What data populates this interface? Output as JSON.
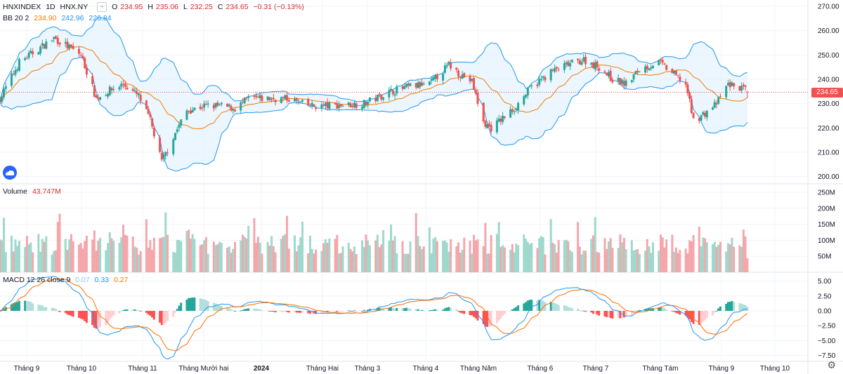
{
  "header": {
    "symbol": "HNXINDEX",
    "interval": "1D",
    "exchange": "HNX.NY",
    "minus_label": "−",
    "ohlc": {
      "open_label": "O",
      "open": "234.95",
      "high_label": "H",
      "high": "235.06",
      "low_label": "L",
      "low": "232.25",
      "close_label": "C",
      "close": "234.65",
      "change": "−0.31 (−0.13%)"
    }
  },
  "bb_legend": {
    "name": "BB 20 2",
    "basis": "234.90",
    "upper": "242.96",
    "lower": "226.84"
  },
  "volume_legend": {
    "name": "Volume",
    "value": "43.747M"
  },
  "macd_legend": {
    "name": "MACD 12 26 close 9",
    "hist": "0.07",
    "macd": "0.33",
    "signal": "0.27"
  },
  "last_price_tag": "234.65",
  "colors": {
    "up": "#26a69a",
    "down": "#ef5350",
    "vol_up": "#9fd8cc",
    "vol_down": "#f4a7ab",
    "bb_basis": "#f57c00",
    "bb_band": "#2196f3",
    "bb_fill": "#e3f2fd",
    "macd_line": "#2196f3",
    "signal_line": "#ff6d00"
  },
  "icons": {
    "logo": "tradingview-cloud-icon",
    "settings": "gear-icon"
  },
  "x_axis_labels": [
    "Tháng 9",
    "Tháng 10",
    "Tháng 11",
    "Tháng Mười hai",
    "2024",
    "Tháng Hai",
    "Tháng 3",
    "Tháng 4",
    "Tháng Năm",
    "Tháng 6",
    "Tháng 7",
    "Tháng Tám",
    "Tháng 9",
    "Tháng 10"
  ],
  "price_axis_labels": [
    "270.00",
    "260.00",
    "250.00",
    "240.00",
    "230.00",
    "220.00",
    "210.00",
    "200.00"
  ],
  "volume_axis_labels": [
    "250M",
    "200M",
    "150M",
    "100M",
    "50M"
  ],
  "macd_axis_labels": [
    "5.00",
    "2.50",
    "0.00",
    "−2.50",
    "−5.00",
    "−7.50"
  ],
  "chart_data": {
    "type": "candlestick",
    "title": "HNXINDEX · 1D · HNX.NY",
    "price_ylim": [
      197,
      272
    ],
    "volume_ylim": [
      0,
      250
    ],
    "volume_unit": "M",
    "macd_ylim": [
      -8.5,
      6.5
    ],
    "grid": true,
    "close_series": {
      "dates": [
        "2023-08-15",
        "2023-08-25",
        "2023-09-05",
        "2023-09-12",
        "2023-09-20",
        "2023-09-26",
        "2023-10-04",
        "2023-10-10",
        "2023-10-18",
        "2023-10-26",
        "2023-11-01",
        "2023-11-07",
        "2023-11-14",
        "2023-11-20",
        "2023-11-29",
        "2023-12-07",
        "2023-12-15",
        "2023-12-22",
        "2024-01-03",
        "2024-01-12",
        "2024-01-22",
        "2024-02-01",
        "2024-02-20",
        "2024-03-05",
        "2024-03-15",
        "2024-03-25",
        "2024-04-04",
        "2024-04-10",
        "2024-04-16",
        "2024-04-22",
        "2024-04-26",
        "2024-05-08",
        "2024-05-16",
        "2024-05-27",
        "2024-06-05",
        "2024-06-13",
        "2024-06-21",
        "2024-06-28",
        "2024-07-05",
        "2024-07-12",
        "2024-07-22",
        "2024-07-30",
        "2024-08-05",
        "2024-08-09",
        "2024-08-15",
        "2024-08-21",
        "2024-08-27",
        "2024-09-04",
        "2024-09-06"
      ],
      "close": [
        232,
        247,
        253,
        257,
        253,
        250,
        232,
        235,
        238,
        233,
        223,
        206,
        218,
        227,
        229,
        229,
        228,
        232,
        232,
        232,
        229,
        229,
        230,
        235,
        237,
        238,
        246,
        242,
        239,
        222,
        220,
        228,
        236,
        243,
        246,
        248,
        245,
        240,
        238,
        244,
        247,
        242,
        238,
        223,
        226,
        230,
        238,
        236,
        234.65
      ]
    },
    "last": {
      "open": 234.95,
      "high": 235.06,
      "low": 232.25,
      "close": 234.65,
      "change": -0.31,
      "change_pct": -0.13
    },
    "bollinger_last": {
      "basis": 234.9,
      "upper": 242.96,
      "lower": 226.84
    },
    "volume_last": 43.747,
    "macd_last": {
      "histogram": 0.07,
      "macd": 0.33,
      "signal": 0.27
    }
  }
}
